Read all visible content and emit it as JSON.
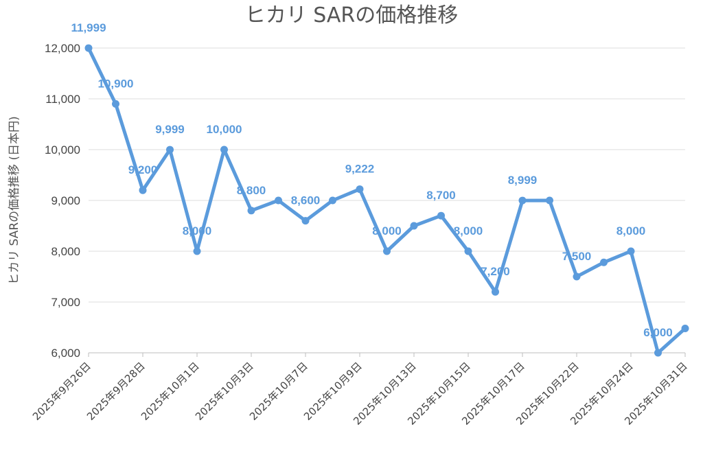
{
  "chart_data": {
    "type": "line",
    "title": "ヒカリ SARの価格推移",
    "ylabel": "ヒカリ SARの価格推移 (日本円)",
    "xlabel": "",
    "ylim": [
      6000,
      12000
    ],
    "yticks": [
      6000,
      7000,
      8000,
      9000,
      10000,
      11000,
      12000
    ],
    "ytick_labels": [
      "6,000",
      "7,000",
      "8,000",
      "9,000",
      "10,000",
      "11,000",
      "12,000"
    ],
    "x_tick_labels": [
      "2025年9月26日",
      "2025年9月28日",
      "2025年10月1日",
      "2025年10月3日",
      "2025年10月7日",
      "2025年10月9日",
      "2025年10月13日",
      "2025年10月15日",
      "2025年10月17日",
      "2025年10月22日",
      "2025年10月24日",
      "2025年10月31日"
    ],
    "grid": true,
    "color": "#5b9bdc",
    "series": [
      {
        "values": [
          11999,
          10900,
          9200,
          9999,
          8000,
          10000,
          8800,
          9000,
          8600,
          9000,
          9222,
          8000,
          8500,
          8700,
          8000,
          7200,
          8999,
          9000,
          7500,
          7780,
          8000,
          6000,
          6480
        ],
        "data_labels": [
          "11,999",
          "10,900",
          "9,200",
          "9,999",
          "8,000",
          "10,000",
          "8,800",
          "",
          "8,600",
          "",
          "9,222",
          "8,000",
          "",
          "8,700",
          "8,000",
          "7,200",
          "8,999",
          "",
          "7,500",
          "",
          "8,000",
          "6,000",
          ""
        ]
      }
    ]
  }
}
